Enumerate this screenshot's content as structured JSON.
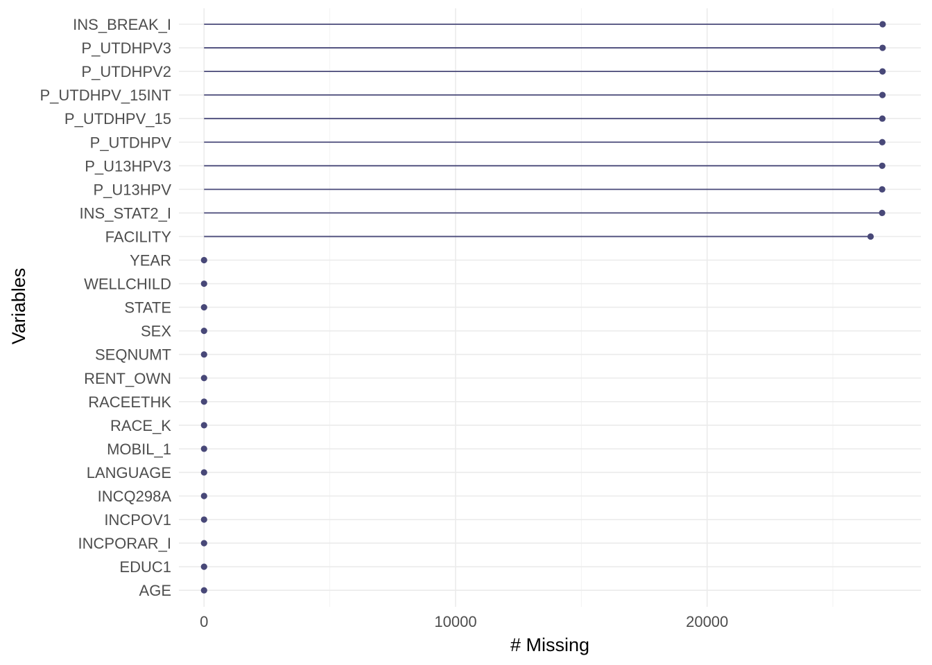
{
  "chart_data": {
    "type": "lollipop",
    "xlabel": "# Missing",
    "ylabel": "Variables",
    "xlim": [
      -1000,
      28500
    ],
    "x_ticks": [
      0,
      10000,
      20000
    ],
    "x_tick_labels": [
      "0",
      "10000",
      "20000"
    ],
    "x_minor_ticks": [
      5000,
      15000,
      25000
    ],
    "grid": true,
    "color": "#484878",
    "categories": [
      "INS_BREAK_I",
      "P_UTDHPV3",
      "P_UTDHPV2",
      "P_UTDHPV_15INT",
      "P_UTDHPV_15",
      "P_UTDHPV",
      "P_U13HPV3",
      "P_U13HPV",
      "INS_STAT2_I",
      "FACILITY",
      "YEAR",
      "WELLCHILD",
      "STATE",
      "SEX",
      "SEQNUMT",
      "RENT_OWN",
      "RACEETHK",
      "RACE_K",
      "MOBIL_1",
      "LANGUAGE",
      "INCQ298A",
      "INCPOV1",
      "INCPORAR_I",
      "EDUC1",
      "AGE"
    ],
    "values": [
      26980,
      26978,
      26975,
      26972,
      26968,
      26965,
      26962,
      26960,
      26958,
      26500,
      0,
      0,
      0,
      0,
      0,
      0,
      0,
      0,
      0,
      0,
      0,
      0,
      0,
      0,
      0
    ]
  }
}
